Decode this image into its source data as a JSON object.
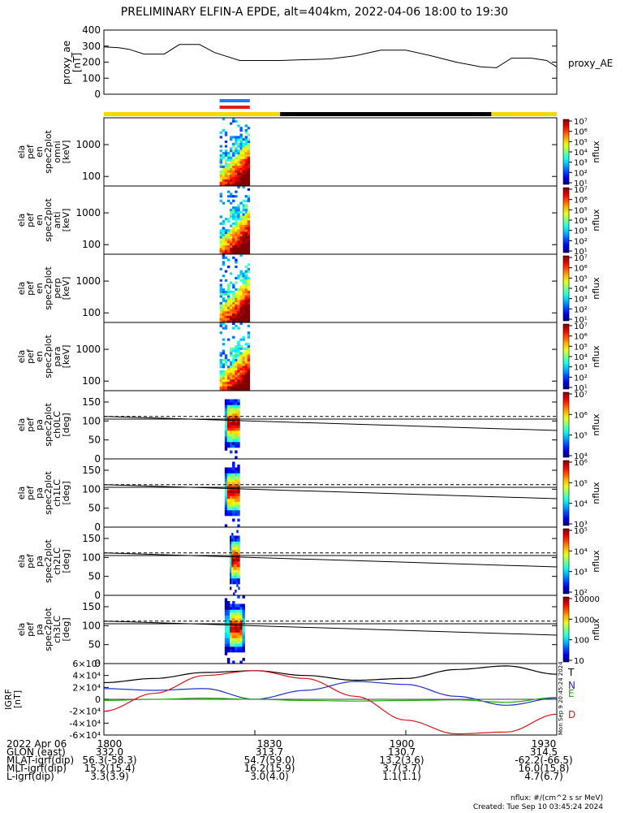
{
  "title": "PRELIMINARY ELFIN-A EPDE, alt=404km, 2022-04-06 18:00 to 19:30",
  "colors": {
    "bar_yellow": "#f5d800",
    "bar_black": "#000000",
    "sci_blue": "#1a7fe6",
    "sci_red": "#e21a1a",
    "grf_T": "#000000",
    "grf_N": "#1a2fd0",
    "grf_E": "#19b000",
    "grf_D": "#d81818"
  },
  "time_axis": {
    "start": "18:00",
    "end": "19:30",
    "tick_labels": [
      "1800",
      "1830",
      "1900",
      "1930"
    ]
  },
  "ephemeris": {
    "rows": [
      {
        "label": "2022 Apr 06",
        "values": [
          "1800",
          "1830",
          "1900",
          "1930"
        ]
      },
      {
        "label": "GLON (east)",
        "values": [
          "332.0",
          "313.7",
          "130.7",
          "314.5"
        ]
      },
      {
        "label": "MLAT-igrf(dip)",
        "values": [
          "56.3(-58.3)",
          "54.7(59.0)",
          "13.2(3.6)",
          "-62.2(-66.5)"
        ]
      },
      {
        "label": "MLT-igrf(dip)",
        "values": [
          "15.2(15.4)",
          "16.2(15.9)",
          "3.7(3.7)",
          "16.0(15.8)"
        ]
      },
      {
        "label": "L-igrf(dip)",
        "values": [
          "3.3(3.9)",
          "3.0(4.0)",
          "1.1(1.1)",
          "4.7(6.7)"
        ]
      }
    ]
  },
  "footer": {
    "units": "nflux: #/(cm^2 s sr MeV)",
    "created": "Created: Tue Sep 10 03:45:24 2024",
    "stamp": "Mon Sep  9 20:45:24 2024"
  },
  "chart_data": [
    {
      "type": "line",
      "panel": "proxy_ae",
      "ylabel_lines": [
        "proxy_ae",
        "[nT]"
      ],
      "legend": "proxy_AE",
      "ylim": [
        0,
        400
      ],
      "yticks": [
        "0",
        "100",
        "200",
        "300",
        "400"
      ],
      "x": [
        "18:00",
        "18:03",
        "18:05",
        "18:08",
        "18:12",
        "18:15",
        "18:19",
        "18:22",
        "18:27",
        "18:35",
        "18:45",
        "18:50",
        "18:55",
        "19:00",
        "19:05",
        "19:10",
        "19:15",
        "19:18",
        "19:21",
        "19:25",
        "19:28",
        "19:30"
      ],
      "y": [
        295,
        290,
        280,
        250,
        250,
        310,
        310,
        260,
        210,
        210,
        220,
        240,
        275,
        275,
        240,
        200,
        170,
        165,
        225,
        225,
        210,
        170
      ]
    },
    {
      "type": "bar",
      "panel": "orbit-status-bars",
      "segments": [
        {
          "start": "18:00",
          "end": "18:35",
          "color": "yellow"
        },
        {
          "start": "18:35",
          "end": "19:17",
          "color": "black"
        },
        {
          "start": "19:17",
          "end": "19:30",
          "color": "yellow"
        }
      ],
      "science_zones": [
        {
          "start": "18:23",
          "end": "18:29",
          "color": "blue"
        },
        {
          "start": "18:23",
          "end": "18:29",
          "color": "red"
        }
      ]
    },
    {
      "type": "heatmap",
      "panel": "spec-omni",
      "ylabel_lines": [
        "ela",
        "pef",
        "en",
        "spec2plot",
        "omni",
        "[keV]"
      ],
      "yscale": "log",
      "ylim": [
        50,
        7000
      ],
      "yticks": [
        "100",
        "1000"
      ],
      "colorbar": {
        "label": "nflux",
        "scale": "log",
        "ticks": [
          "10¹",
          "10²",
          "10³",
          "10⁴",
          "10⁵",
          "10⁶",
          "10⁷"
        ]
      },
      "active_interval": [
        "18:23",
        "18:29"
      ]
    },
    {
      "type": "heatmap",
      "panel": "spec-anti",
      "ylabel_lines": [
        "ela",
        "pef",
        "en",
        "spec2plot",
        "anti",
        "[keV]"
      ],
      "yscale": "log",
      "ylim": [
        50,
        7000
      ],
      "yticks": [
        "100",
        "1000"
      ],
      "colorbar": {
        "label": "nflux",
        "scale": "log",
        "ticks": [
          "10¹",
          "10²",
          "10³",
          "10⁴",
          "10⁵",
          "10⁶",
          "10⁷"
        ]
      },
      "active_interval": [
        "18:23",
        "18:29"
      ]
    },
    {
      "type": "heatmap",
      "panel": "spec-perp",
      "ylabel_lines": [
        "ela",
        "pef",
        "en",
        "spec2plot",
        "perp",
        "[keV]"
      ],
      "yscale": "log",
      "ylim": [
        50,
        7000
      ],
      "yticks": [
        "100",
        "1000"
      ],
      "colorbar": {
        "label": "nflux",
        "scale": "log",
        "ticks": [
          "10¹",
          "10²",
          "10³",
          "10⁴",
          "10⁵",
          "10⁶",
          "10⁷"
        ]
      },
      "active_interval": [
        "18:23",
        "18:29"
      ]
    },
    {
      "type": "heatmap",
      "panel": "spec-para",
      "ylabel_lines": [
        "ela",
        "pef",
        "en",
        "spec2plot",
        "para",
        "[keV]"
      ],
      "yscale": "log",
      "ylim": [
        50,
        7000
      ],
      "yticks": [
        "100",
        "1000"
      ],
      "colorbar": {
        "label": "nflux",
        "scale": "log",
        "ticks": [
          "10¹",
          "10²",
          "10³",
          "10⁴",
          "10⁵",
          "10⁶",
          "10⁷"
        ]
      },
      "active_interval": [
        "18:23",
        "18:29"
      ]
    },
    {
      "type": "heatmap",
      "panel": "pa-ch0",
      "ylabel_lines": [
        "ela",
        "pef",
        "pa",
        "spec2plot",
        "ch0LC",
        "[deg]"
      ],
      "ylim": [
        0,
        180
      ],
      "yticks": [
        "0",
        "50",
        "100",
        "150"
      ],
      "colorbar": {
        "label": "nflux",
        "scale": "log",
        "ticks": [
          "10⁴",
          "10⁵",
          "10⁶",
          "10⁷"
        ]
      },
      "active_interval": [
        "18:24",
        "18:27"
      ]
    },
    {
      "type": "heatmap",
      "panel": "pa-ch1",
      "ylabel_lines": [
        "ela",
        "pef",
        "pa",
        "spec2plot",
        "ch1LC",
        "[deg]"
      ],
      "ylim": [
        0,
        180
      ],
      "yticks": [
        "0",
        "50",
        "100",
        "150"
      ],
      "colorbar": {
        "label": "nflux",
        "scale": "log",
        "ticks": [
          "10³",
          "10⁴",
          "10⁵",
          "10⁶"
        ]
      },
      "active_interval": [
        "18:24",
        "18:27"
      ]
    },
    {
      "type": "heatmap",
      "panel": "pa-ch2",
      "ylabel_lines": [
        "ela",
        "pef",
        "pa",
        "spec2plot",
        "ch2LC",
        "[deg]"
      ],
      "ylim": [
        0,
        180
      ],
      "yticks": [
        "0",
        "50",
        "100",
        "150"
      ],
      "colorbar": {
        "label": "nflux",
        "scale": "log",
        "ticks": [
          "10²",
          "10³",
          "10⁴",
          "10⁵"
        ]
      },
      "active_interval": [
        "18:25",
        "18:27"
      ]
    },
    {
      "type": "heatmap",
      "panel": "pa-ch3",
      "ylabel_lines": [
        "ela",
        "pef",
        "pa",
        "spec2plot",
        "ch3LC",
        "[deg]"
      ],
      "ylim": [
        0,
        180
      ],
      "yticks": [
        "0",
        "50",
        "100",
        "150"
      ],
      "colorbar": {
        "label": "nflux",
        "scale": "log",
        "ticks": [
          "10",
          "100",
          "1000",
          "10000"
        ]
      },
      "active_interval": [
        "18:24",
        "18:28"
      ]
    },
    {
      "type": "line",
      "panel": "igrf",
      "ylabel_lines": [
        "IGRF",
        "[nT]"
      ],
      "ylim": [
        -60000,
        60000
      ],
      "yticks": [
        "-6×10⁴",
        "-4×10⁴",
        "-2×10⁴",
        "0",
        "2×10⁴",
        "4×10⁴",
        "6×10⁴"
      ],
      "x": [
        "18:00",
        "18:10",
        "18:20",
        "18:30",
        "18:40",
        "18:50",
        "19:00",
        "19:10",
        "19:20",
        "19:30"
      ],
      "series": [
        {
          "name": "T",
          "color_key": "grf_T",
          "values": [
            28000,
            35000,
            45000,
            48000,
            40000,
            32000,
            35000,
            50000,
            56000,
            42000
          ]
        },
        {
          "name": "N",
          "color_key": "grf_N",
          "values": [
            18000,
            15000,
            18000,
            0,
            15000,
            30000,
            25000,
            5000,
            -10000,
            2000
          ]
        },
        {
          "name": "E",
          "color_key": "grf_E",
          "values": [
            -2000,
            0,
            2000,
            0,
            -2000,
            -3000,
            -2000,
            -1000,
            -5000,
            3000
          ]
        },
        {
          "name": "D",
          "color_key": "grf_D",
          "values": [
            -20000,
            10000,
            40000,
            48000,
            35000,
            5000,
            -35000,
            -58000,
            -55000,
            -25000
          ]
        }
      ]
    }
  ]
}
